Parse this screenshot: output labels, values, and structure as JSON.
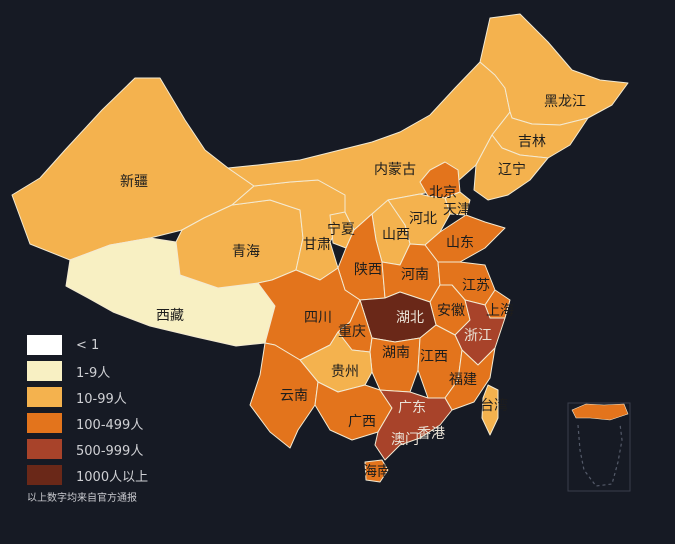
{
  "legend": [
    {
      "label": "< 1",
      "color": "#ffffff"
    },
    {
      "label": "1-9人",
      "color": "#f8f0c3"
    },
    {
      "label": "10-99人",
      "color": "#f4b24e"
    },
    {
      "label": "100-499人",
      "color": "#e3741c"
    },
    {
      "label": "500-999人",
      "color": "#a8432a"
    },
    {
      "label": "1000人以上",
      "color": "#6a2818"
    }
  ],
  "note": "以上数字均来自官方通报",
  "provinces": [
    {
      "name": "黑龙江",
      "tier": "10-99人"
    },
    {
      "name": "吉林",
      "tier": "10-99人"
    },
    {
      "name": "辽宁",
      "tier": "10-99人"
    },
    {
      "name": "内蒙古",
      "tier": "10-99人"
    },
    {
      "name": "北京",
      "tier": "100-499人"
    },
    {
      "name": "天津",
      "tier": "10-99人"
    },
    {
      "name": "河北",
      "tier": "10-99人"
    },
    {
      "name": "山西",
      "tier": "10-99人"
    },
    {
      "name": "山东",
      "tier": "100-499人"
    },
    {
      "name": "新疆",
      "tier": "10-99人"
    },
    {
      "name": "青海",
      "tier": "10-99人"
    },
    {
      "name": "甘肃",
      "tier": "10-99人"
    },
    {
      "name": "宁夏",
      "tier": "10-99人"
    },
    {
      "name": "陕西",
      "tier": "100-499人"
    },
    {
      "name": "河南",
      "tier": "100-499人"
    },
    {
      "name": "江苏",
      "tier": "100-499人"
    },
    {
      "name": "上海",
      "tier": "100-499人"
    },
    {
      "name": "安徽",
      "tier": "100-499人"
    },
    {
      "name": "湖北",
      "tier": "1000人以上"
    },
    {
      "name": "浙江",
      "tier": "500-999人"
    },
    {
      "name": "西藏",
      "tier": "1-9人"
    },
    {
      "name": "四川",
      "tier": "100-499人"
    },
    {
      "name": "重庆",
      "tier": "100-499人"
    },
    {
      "name": "湖南",
      "tier": "100-499人"
    },
    {
      "name": "江西",
      "tier": "100-499人"
    },
    {
      "name": "贵州",
      "tier": "10-99人"
    },
    {
      "name": "云南",
      "tier": "100-499人"
    },
    {
      "name": "福建",
      "tier": "100-499人"
    },
    {
      "name": "广西",
      "tier": "100-499人"
    },
    {
      "name": "广东",
      "tier": "500-999人"
    },
    {
      "name": "澳门",
      "tier": "1-9人"
    },
    {
      "name": "香港",
      "tier": "10-99人"
    },
    {
      "name": "台湾",
      "tier": "10-99人"
    },
    {
      "name": "海南",
      "tier": "100-499人"
    }
  ]
}
